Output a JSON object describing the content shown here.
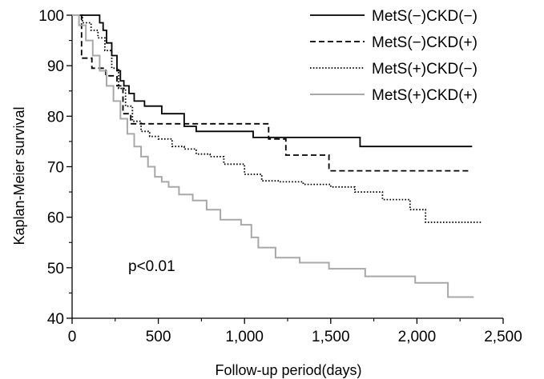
{
  "chart_data": {
    "type": "line",
    "step": true,
    "title": "",
    "xlabel": "Follow-up period(days)",
    "ylabel": "Kaplan-Meier survival",
    "xlim": [
      0,
      2500
    ],
    "ylim": [
      40,
      100
    ],
    "xticks": [
      0,
      500,
      1000,
      1500,
      2000,
      2500
    ],
    "xtick_labels": [
      "0",
      "500",
      "1,000",
      "1,500",
      "2,000",
      "2,500"
    ],
    "yticks": [
      40,
      50,
      60,
      70,
      80,
      90,
      100
    ],
    "ytick_labels": [
      "40",
      "50",
      "60",
      "70",
      "80",
      "90",
      "100"
    ],
    "grid": false,
    "legend_position": "top-right",
    "annotation": "p<0.01",
    "series": [
      {
        "name": "MetS(−)CKD(−)",
        "style": "solid",
        "color": "#000000",
        "x": [
          0,
          140,
          160,
          180,
          200,
          230,
          260,
          280,
          300,
          330,
          360,
          420,
          520,
          650,
          720,
          1050,
          1670,
          2320
        ],
        "y": [
          100,
          100,
          98.5,
          97,
          94.5,
          92,
          89,
          87,
          86,
          84.5,
          83,
          82,
          80.5,
          78,
          77,
          75.8,
          74,
          74
        ]
      },
      {
        "name": "MetS(−)CKD(+)",
        "style": "dashed",
        "color": "#000000",
        "x": [
          0,
          55,
          115,
          195,
          260,
          295,
          340,
          1140,
          1240,
          1490,
          2310
        ],
        "y": [
          100,
          91.5,
          89.5,
          88,
          86,
          80.5,
          78.5,
          75.5,
          72.3,
          69.2,
          69.2
        ]
      },
      {
        "name": "MetS(+)CKD(−)",
        "style": "dotted",
        "color": "#000000",
        "x": [
          0,
          60,
          110,
          150,
          190,
          230,
          270,
          310,
          350,
          400,
          450,
          500,
          580,
          650,
          720,
          800,
          880,
          1000,
          1100,
          1200,
          1340,
          1500,
          1640,
          1800,
          1960,
          2050,
          2380
        ],
        "y": [
          100,
          98.5,
          97,
          95.5,
          93,
          89.5,
          85.5,
          82,
          79,
          77,
          76,
          75.5,
          74,
          73.5,
          72.5,
          72,
          70.5,
          68.5,
          67.2,
          67,
          66.5,
          66,
          65,
          63.5,
          61.5,
          59,
          59
        ]
      },
      {
        "name": "MetS(+)CKD(+)",
        "style": "solid",
        "color": "#a8a8a8",
        "x": [
          0,
          40,
          80,
          120,
          160,
          200,
          240,
          280,
          320,
          360,
          400,
          440,
          480,
          520,
          560,
          620,
          700,
          780,
          860,
          980,
          1040,
          1080,
          1180,
          1320,
          1490,
          1700,
          1990,
          2180,
          2330
        ],
        "y": [
          100,
          98,
          95,
          92,
          89,
          86,
          83,
          79.5,
          76.5,
          74,
          72,
          70,
          68,
          67,
          66,
          64.5,
          63.3,
          61.5,
          59.5,
          58.5,
          56,
          54,
          52,
          51,
          49.8,
          48.3,
          47,
          44.2,
          44.2
        ]
      }
    ]
  }
}
